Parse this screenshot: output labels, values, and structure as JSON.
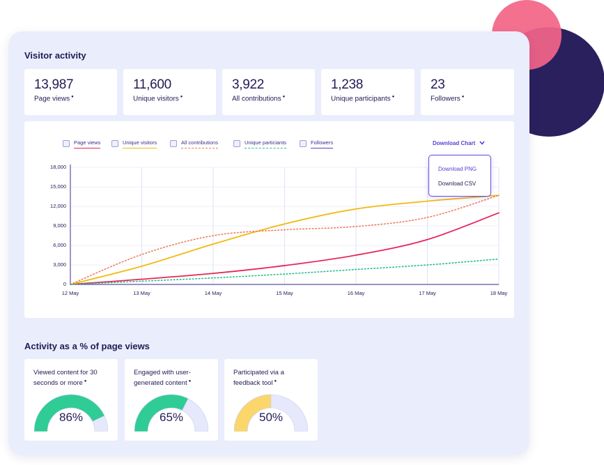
{
  "visitor_activity": {
    "title": "Visitor activity",
    "stats": [
      {
        "value": "13,987",
        "label": "Page views"
      },
      {
        "value": "11,600",
        "label": "Unique visitors"
      },
      {
        "value": "3,922",
        "label": "All contributions"
      },
      {
        "value": "1,238",
        "label": "Unique participants"
      },
      {
        "value": "23",
        "label": "Followers"
      }
    ]
  },
  "chart": {
    "legend": [
      {
        "label": "Page views",
        "checked": true,
        "color": "#e8245a",
        "dashed": false
      },
      {
        "label": "Unique visitors",
        "checked": true,
        "color": "#f2b90d",
        "dashed": false
      },
      {
        "label": "All contributions",
        "checked": true,
        "color": "#f07a5a",
        "dashed": true
      },
      {
        "label": "Unique particiants",
        "checked": true,
        "color": "#1fbf85",
        "dashed": true
      },
      {
        "label": "Followers",
        "checked": false,
        "color": "#5b3fd0",
        "dashed": false
      }
    ],
    "check_mark": "✓",
    "download": {
      "label": "Download Chart",
      "options": [
        "Download PNG",
        "Download CSV"
      ]
    }
  },
  "chart_data": {
    "type": "line",
    "x": [
      "12 May",
      "13 May",
      "14 May",
      "15 May",
      "16 May",
      "17 May",
      "18 May"
    ],
    "y_ticks": [
      "18,000",
      "15,000",
      "12,000",
      "9,000",
      "6,000",
      "3,000",
      "0"
    ],
    "ylim": [
      0,
      18000
    ],
    "grid": true,
    "series": [
      {
        "name": "Page views",
        "color": "#e8245a",
        "dashed": false,
        "values": [
          0,
          800,
          1700,
          2900,
          4500,
          6900,
          11000
        ]
      },
      {
        "name": "Unique visitors",
        "color": "#f2b90d",
        "dashed": false,
        "values": [
          0,
          2800,
          6200,
          9300,
          11600,
          12800,
          13700
        ]
      },
      {
        "name": "All contributions",
        "color": "#f07a5a",
        "dashed": true,
        "values": [
          0,
          4600,
          7500,
          8400,
          8900,
          10300,
          13700
        ]
      },
      {
        "name": "Unique particiants",
        "color": "#1fbf85",
        "dashed": true,
        "values": [
          0,
          500,
          1000,
          1600,
          2300,
          3000,
          3900
        ]
      }
    ]
  },
  "activity_pct": {
    "title": "Activity as a % of page views",
    "gauges": [
      {
        "label_lines": [
          "Viewed content for 30",
          "seconds or more"
        ],
        "value": "86%",
        "fraction": 0.86,
        "color": "#2fcc96"
      },
      {
        "label_lines": [
          "Engaged with user-",
          "generated content"
        ],
        "value": "65%",
        "fraction": 0.65,
        "color": "#2fcc96"
      },
      {
        "label_lines": [
          "Participated via a",
          "feedback tool"
        ],
        "value": "50%",
        "fraction": 0.5,
        "color": "#fbd66a"
      }
    ],
    "track_color": "#e6e9fb"
  },
  "info_glyph": "●"
}
